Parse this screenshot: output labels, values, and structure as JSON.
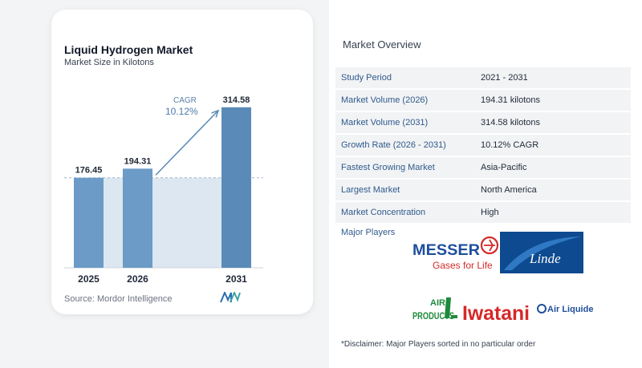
{
  "chart": {
    "title": "Liquid Hydrogen Market",
    "subtitle": "Market Size in Kilotons",
    "source": "Source:  Mordor Intelligence",
    "cagr_label": "CAGR",
    "cagr_value": "10.12%",
    "colors": {
      "bar": "#6b9bc6",
      "bar_dark": "#5a8ab7",
      "shade": "#dde7f1",
      "arrow": "#5a8ab7"
    }
  },
  "chart_data": {
    "type": "bar",
    "categories": [
      "2025",
      "2026",
      "2031"
    ],
    "values": [
      176.45,
      194.31,
      314.58
    ],
    "labels": [
      "176.45",
      "194.31",
      "314.58"
    ],
    "title": "Liquid Hydrogen Market",
    "subtitle": "Market Size in Kilotons",
    "ylim": [
      0,
      330
    ],
    "annotation": {
      "label": "CAGR",
      "value": "10.12%",
      "from": "2026",
      "to": "2031"
    }
  },
  "overview": {
    "title": "Market Overview",
    "rows": [
      {
        "key": "Study Period",
        "value": "2021 - 2031"
      },
      {
        "key": "Market Volume (2026)",
        "value": "194.31 kilotons"
      },
      {
        "key": "Market Volume (2031)",
        "value": "314.58 kilotons"
      },
      {
        "key": "Growth Rate (2026 - 2031)",
        "value": "10.12% CAGR"
      },
      {
        "key": "Fastest Growing Market",
        "value": "Asia-Pacific"
      },
      {
        "key": "Largest Market",
        "value": "North America"
      },
      {
        "key": "Market Concentration",
        "value": "High"
      }
    ],
    "major_players_label": "Major Players",
    "players": {
      "messer": "MESSER",
      "messer_tagline": "Gases for Life",
      "linde": "Linde",
      "air_products_1": "AIR",
      "air_products_2": "PRODUCTS",
      "iwatani": "Iwatani",
      "air_liquide": "Air Liquide"
    },
    "disclaimer": "*Disclaimer: Major Players sorted in no particular order"
  }
}
